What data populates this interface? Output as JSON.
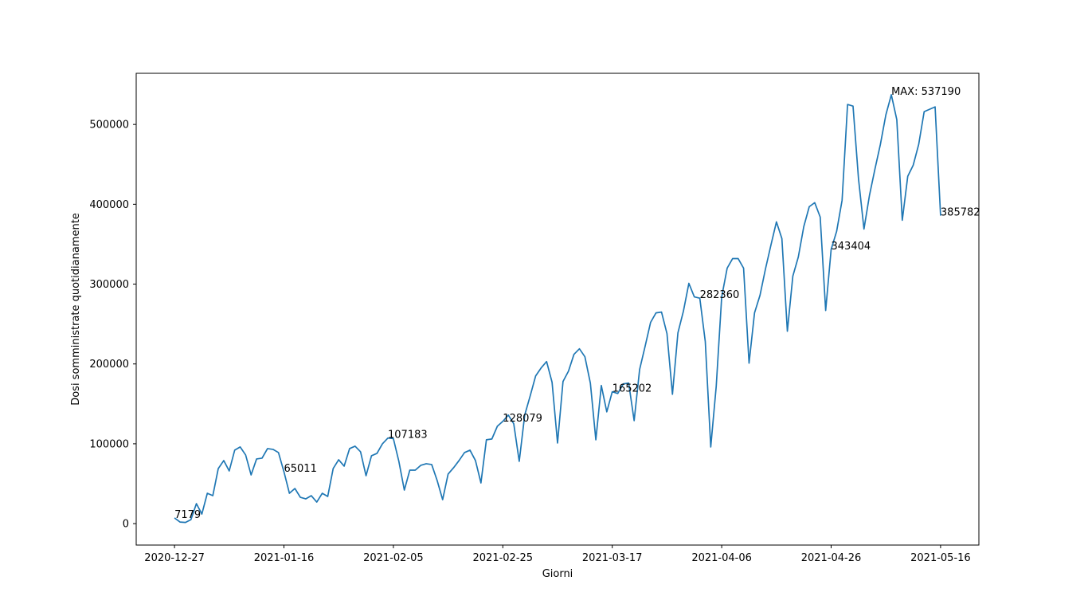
{
  "chart_data": {
    "type": "line",
    "xlabel": "Giorni",
    "ylabel": "Dosi somministrate quotidianamente",
    "x_start": "2020-12-27",
    "x_ticks": [
      "2020-12-27",
      "2021-01-16",
      "2021-02-05",
      "2021-02-25",
      "2021-03-17",
      "2021-04-06",
      "2021-04-26",
      "2021-05-16"
    ],
    "y_ticks": [
      0,
      100000,
      200000,
      300000,
      400000,
      500000
    ],
    "ylim": [
      -26860,
      564050
    ],
    "xlim": [
      "2020-12-20",
      "2021-05-23"
    ],
    "grid": false,
    "line_color": "#1f77b4",
    "series": [
      {
        "values": [
          7179,
          2000,
          1500,
          5000,
          25000,
          12000,
          38000,
          35000,
          69000,
          79000,
          66000,
          92000,
          96000,
          86000,
          61000,
          81000,
          82000,
          94000,
          93000,
          89000,
          65011,
          38000,
          44000,
          33000,
          31000,
          35000,
          27000,
          38000,
          34000,
          69000,
          80000,
          72000,
          94000,
          97000,
          90000,
          60000,
          85000,
          88000,
          100000,
          107183,
          106500,
          78000,
          42000,
          67000,
          67000,
          73000,
          75000,
          74000,
          54000,
          30000,
          62000,
          70000,
          79000,
          89000,
          92000,
          79000,
          51000,
          105000,
          106000,
          122000,
          128079,
          136000,
          125000,
          78000,
          136000,
          160000,
          185000,
          195000,
          203000,
          177000,
          101000,
          178000,
          191000,
          212000,
          219000,
          209000,
          176000,
          105000,
          173000,
          140000,
          165202,
          163000,
          175000,
          176000,
          129000,
          193000,
          222000,
          252000,
          264000,
          265000,
          238000,
          162000,
          239000,
          266000,
          301000,
          284000,
          282360,
          228000,
          96000,
          172000,
          284000,
          320000,
          332000,
          332000,
          320000,
          201000,
          264000,
          286000,
          319000,
          349000,
          378000,
          357000,
          241000,
          310000,
          334000,
          372000,
          397000,
          402000,
          384000,
          267000,
          343404,
          366000,
          405000,
          525000,
          523000,
          432000,
          369000,
          411000,
          444000,
          475000,
          512000,
          537190,
          506000,
          380000,
          435000,
          449000,
          475000,
          516000,
          519000,
          522000,
          385782
        ]
      }
    ],
    "annotations": [
      {
        "index": 0,
        "label": "7179"
      },
      {
        "index": 20,
        "label": "65011"
      },
      {
        "index": 39,
        "label": "107183"
      },
      {
        "index": 60,
        "label": "128079"
      },
      {
        "index": 80,
        "label": "165202"
      },
      {
        "index": 96,
        "label": "282360"
      },
      {
        "index": 120,
        "label": "343404"
      },
      {
        "index": 131,
        "label": "MAX: 537190"
      },
      {
        "index": 140,
        "label": "385782"
      }
    ]
  }
}
